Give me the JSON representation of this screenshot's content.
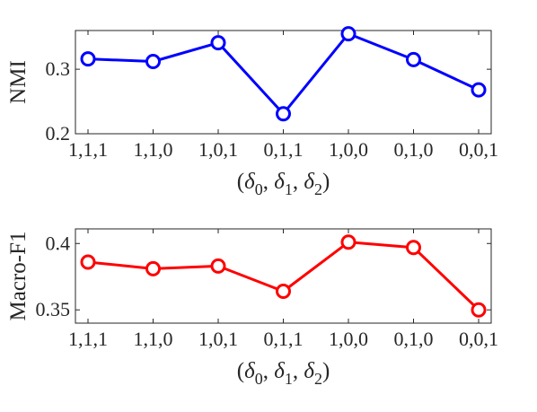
{
  "chart_data": [
    {
      "type": "line",
      "categories": [
        "1,1,1",
        "1,1,0",
        "1,0,1",
        "0,1,1",
        "1,0,0",
        "0,1,0",
        "0,0,1"
      ],
      "series": [
        {
          "values": [
            0.316,
            0.312,
            0.341,
            0.231,
            0.355,
            0.315,
            0.268
          ],
          "color": "#0000ff",
          "marker": "circle"
        }
      ],
      "xlabel": "(δ0, δ1, δ2)",
      "xlabel_parts": {
        "open": "(",
        "d": "δ",
        "s0": "0",
        "s1": "1",
        "s2": "2",
        "sep": ", ",
        "close": ")"
      },
      "ylabel": "NMI",
      "ylim": [
        0.2,
        0.36
      ],
      "yticks": [
        0.2,
        0.3
      ],
      "ytick_labels": [
        "0.2",
        "0.3"
      ],
      "grid": false
    },
    {
      "type": "line",
      "categories": [
        "1,1,1",
        "1,1,0",
        "1,0,1",
        "0,1,1",
        "1,0,0",
        "0,1,0",
        "0,0,1"
      ],
      "series": [
        {
          "values": [
            0.386,
            0.381,
            0.383,
            0.364,
            0.401,
            0.397,
            0.35
          ],
          "color": "#ff0000",
          "marker": "circle"
        }
      ],
      "xlabel": "(δ0, δ1, δ2)",
      "xlabel_parts": {
        "open": "(",
        "d": "δ",
        "s0": "0",
        "s1": "1",
        "s2": "2",
        "sep": ", ",
        "close": ")"
      },
      "ylabel": "Macro-F1",
      "ylim": [
        0.34,
        0.411
      ],
      "yticks": [
        0.35,
        0.4
      ],
      "ytick_labels": [
        "0.35",
        "0.4"
      ],
      "grid": false
    }
  ]
}
